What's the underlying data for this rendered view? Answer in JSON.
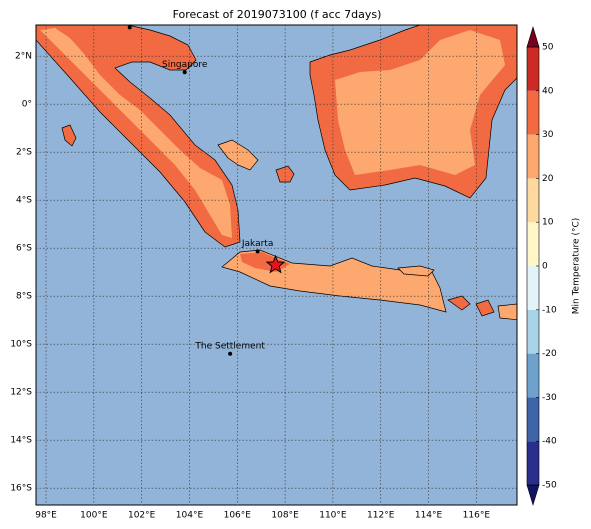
{
  "map": {
    "title": "Forecast of 2019073100 (f acc 7days)",
    "xlim": [
      97.58,
      117.7
    ],
    "ylim": [
      -16.7,
      3.3
    ],
    "xticks": [
      {
        "value": 98,
        "label": "98°E"
      },
      {
        "value": 100,
        "label": "100°E"
      },
      {
        "value": 102,
        "label": "102°E"
      },
      {
        "value": 104,
        "label": "104°E"
      },
      {
        "value": 106,
        "label": "106°E"
      },
      {
        "value": 108,
        "label": "108°E"
      },
      {
        "value": 110,
        "label": "110°E"
      },
      {
        "value": 112,
        "label": "112°E"
      },
      {
        "value": 114,
        "label": "114°E"
      },
      {
        "value": 116,
        "label": "116°E"
      }
    ],
    "yticks": [
      {
        "value": 2,
        "label": "2°N"
      },
      {
        "value": 0,
        "label": "0°"
      },
      {
        "value": -2,
        "label": "2°S"
      },
      {
        "value": -4,
        "label": "4°S"
      },
      {
        "value": -6,
        "label": "6°S"
      },
      {
        "value": -8,
        "label": "8°S"
      },
      {
        "value": -10,
        "label": "10°S"
      },
      {
        "value": -12,
        "label": "12°S"
      },
      {
        "value": -14,
        "label": "14°S"
      },
      {
        "value": -16,
        "label": "16°S"
      }
    ],
    "cities": [
      {
        "name": "Singapore",
        "lon": 103.8,
        "lat": 1.33
      },
      {
        "name": "Jakarta",
        "lon": 106.85,
        "lat": -6.13
      },
      {
        "name": "The Settlement",
        "lon": 105.7,
        "lat": -10.4
      }
    ],
    "points": [
      {
        "lon": 101.5,
        "lat": 3.2
      }
    ],
    "star": {
      "lon": 107.6,
      "lat": -6.7,
      "color": "#e8141c"
    },
    "colorbar": {
      "label": "Min Temperature (°C)",
      "ticks": [
        -50,
        -40,
        -30,
        -20,
        -10,
        0,
        10,
        20,
        30,
        40,
        50
      ],
      "colors": [
        "#2b2f8c",
        "#3f65a8",
        "#6ea2cc",
        "#a9d3e6",
        "#e4f3f8",
        "#fff7c8",
        "#fdd9a0",
        "#fca86e",
        "#f26a42",
        "#cc2a26"
      ],
      "under": "#141464",
      "over": "#7a0020"
    }
  }
}
